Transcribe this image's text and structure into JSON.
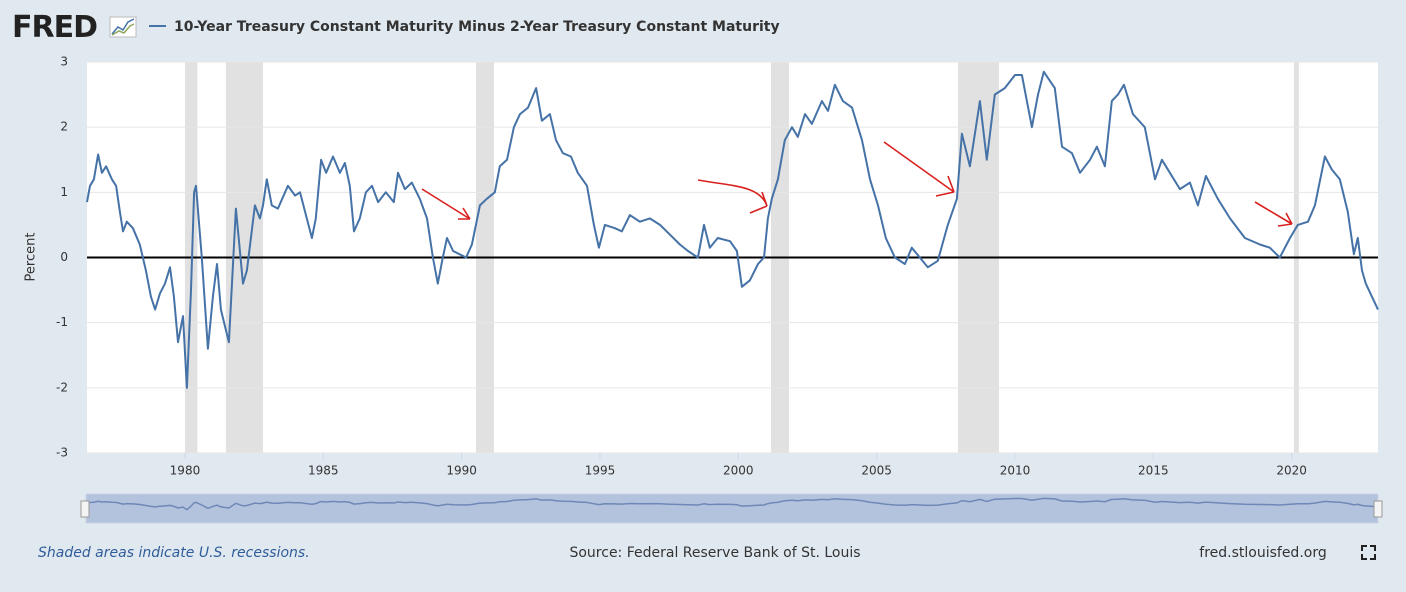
{
  "chart_data": {
    "type": "line",
    "logo": "FRED",
    "y_label": "Percent",
    "x": [
      1976.46,
      1976.57,
      1976.71,
      1976.86,
      1977.0,
      1977.15,
      1977.36,
      1977.51,
      1977.65,
      1977.76,
      1977.9,
      1978.12,
      1978.37,
      1978.59,
      1978.77,
      1978.92,
      1979.1,
      1979.28,
      1979.46,
      1979.6,
      1979.75,
      1979.93,
      1980.07,
      1980.22,
      1980.33,
      1980.4,
      1980.61,
      1980.83,
      1981.01,
      1981.16,
      1981.3,
      1981.59,
      1981.84,
      1982.1,
      1982.24,
      1982.53,
      1982.71,
      1982.82,
      1982.96,
      1983.14,
      1983.36,
      1983.72,
      1983.98,
      1984.16,
      1984.59,
      1984.73,
      1984.92,
      1985.1,
      1985.35,
      1985.6,
      1985.78,
      1985.96,
      1986.11,
      1986.32,
      1986.54,
      1986.76,
      1986.98,
      1987.26,
      1987.55,
      1987.7,
      1987.95,
      1988.2,
      1988.49,
      1988.75,
      1988.96,
      1989.14,
      1989.32,
      1989.47,
      1989.69,
      1990.16,
      1990.37,
      1990.66,
      1990.91,
      1991.2,
      1991.38,
      1991.64,
      1991.89,
      1992.11,
      1992.4,
      1992.69,
      1992.9,
      1993.19,
      1993.41,
      1993.66,
      1993.95,
      1994.2,
      1994.53,
      1994.78,
      1994.96,
      1995.18,
      1995.54,
      1995.79,
      1996.08,
      1996.44,
      1996.8,
      1997.17,
      1997.53,
      1997.89,
      1998.18,
      1998.54,
      1998.76,
      1998.97,
      1999.26,
      1999.7,
      1999.95,
      2000.13,
      2000.42,
      2000.71,
      2000.93,
      2001.07,
      2001.21,
      2001.43,
      2001.68,
      2001.94,
      2002.15,
      2002.41,
      2002.66,
      2003.02,
      2003.24,
      2003.49,
      2003.78,
      2004.11,
      2004.47,
      2004.76,
      2005.05,
      2005.33,
      2005.66,
      2006.02,
      2006.27,
      2006.56,
      2006.85,
      2007.21,
      2007.57,
      2007.9,
      2008.08,
      2008.37,
      2008.73,
      2008.98,
      2009.27,
      2009.63,
      2010.0,
      2010.25,
      2010.61,
      2010.83,
      2011.04,
      2011.44,
      2011.7,
      2012.06,
      2012.35,
      2012.71,
      2012.96,
      2013.25,
      2013.5,
      2013.72,
      2013.94,
      2014.26,
      2014.69,
      2015.06,
      2015.31,
      2015.6,
      2015.96,
      2016.32,
      2016.61,
      2016.9,
      2017.33,
      2017.77,
      2018.31,
      2018.85,
      2019.21,
      2019.57,
      2019.94,
      2020.22,
      2020.59,
      2020.84,
      2021.2,
      2021.45,
      2021.74,
      2022.03,
      2022.25,
      2022.39,
      2022.54,
      2022.68,
      2022.9,
      2023.12
    ],
    "series": [
      {
        "name": "10-Year Treasury Constant Maturity Minus 2-Year Treasury Constant Maturity",
        "color": "#4572a7",
        "values": [
          0.85,
          1.1,
          1.2,
          1.58,
          1.3,
          1.4,
          1.2,
          1.1,
          0.7,
          0.4,
          0.55,
          0.45,
          0.2,
          -0.2,
          -0.6,
          -0.8,
          -0.55,
          -0.4,
          -0.15,
          -0.6,
          -1.3,
          -0.9,
          -2.0,
          -0.5,
          1.0,
          1.1,
          0.0,
          -1.4,
          -0.6,
          -0.1,
          -0.8,
          -1.3,
          0.75,
          -0.4,
          -0.2,
          0.8,
          0.6,
          0.8,
          1.2,
          0.8,
          0.75,
          1.1,
          0.95,
          1.0,
          0.3,
          0.6,
          1.5,
          1.3,
          1.55,
          1.3,
          1.45,
          1.1,
          0.4,
          0.6,
          1.0,
          1.1,
          0.85,
          1.0,
          0.85,
          1.3,
          1.05,
          1.15,
          0.9,
          0.6,
          0.0,
          -0.4,
          0.0,
          0.3,
          0.1,
          0.0,
          0.2,
          0.8,
          0.9,
          1.0,
          1.4,
          1.5,
          2.0,
          2.2,
          2.3,
          2.6,
          2.1,
          2.2,
          1.8,
          1.6,
          1.55,
          1.3,
          1.1,
          0.5,
          0.15,
          0.5,
          0.45,
          0.4,
          0.65,
          0.55,
          0.6,
          0.5,
          0.35,
          0.2,
          0.1,
          0.0,
          0.5,
          0.15,
          0.3,
          0.25,
          0.1,
          -0.45,
          -0.35,
          -0.1,
          0.0,
          0.6,
          0.9,
          1.2,
          1.8,
          2.0,
          1.85,
          2.2,
          2.05,
          2.4,
          2.25,
          2.65,
          2.4,
          2.3,
          1.8,
          1.2,
          0.8,
          0.3,
          0.0,
          -0.1,
          0.15,
          0.0,
          -0.15,
          -0.05,
          0.5,
          0.9,
          1.9,
          1.4,
          2.4,
          1.5,
          2.5,
          2.6,
          2.8,
          2.8,
          2.0,
          2.5,
          2.85,
          2.6,
          1.7,
          1.6,
          1.3,
          1.5,
          1.7,
          1.4,
          2.4,
          2.5,
          2.65,
          2.2,
          2.0,
          1.2,
          1.5,
          1.3,
          1.05,
          1.15,
          0.8,
          1.25,
          0.9,
          0.6,
          0.3,
          0.2,
          0.15,
          0.0,
          0.3,
          0.5,
          0.55,
          0.8,
          1.55,
          1.35,
          1.2,
          0.7,
          0.05,
          0.3,
          -0.2,
          -0.4,
          -0.6,
          -0.8
        ]
      }
    ],
    "xlim": [
      1976.46,
      2023.12
    ],
    "ylim": [
      -3,
      3
    ],
    "xticks": [
      1980,
      1985,
      1990,
      1995,
      2000,
      2005,
      2010,
      2015,
      2020
    ],
    "yticks": [
      -3,
      -2,
      -1,
      0,
      1,
      2,
      3
    ],
    "grid": true,
    "zero_line": true,
    "recessions": [
      [
        1980.0,
        1980.45
      ],
      [
        1981.48,
        1982.82
      ],
      [
        1990.52,
        1991.17
      ],
      [
        2001.18,
        2001.83
      ],
      [
        2007.94,
        2009.42
      ],
      [
        2020.08,
        2020.26
      ]
    ],
    "recession_color": "#e1e1e1"
  },
  "footer": {
    "note": "Shaded areas indicate U.S. recessions.",
    "source": "Source: Federal Reserve Bank of St. Louis",
    "url": "fred.stlouisfed.org"
  }
}
